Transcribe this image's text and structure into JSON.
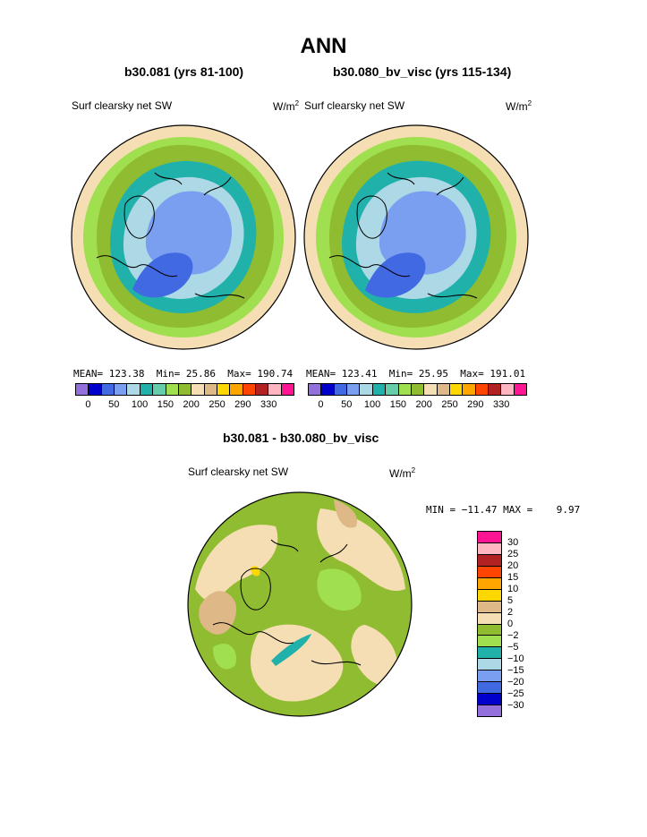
{
  "title": "ANN",
  "panels": [
    {
      "case_title": "b30.081 (yrs 81-100)",
      "field": "Surf clearsky net SW",
      "units": "W/m",
      "units_sup": "2",
      "stats": {
        "mean_label": "MEAN=",
        "mean": "123.38",
        "min_label": "Min=",
        "min": "25.86",
        "max_label": "Max=",
        "max": "190.74"
      }
    },
    {
      "case_title": "b30.080_bv_visc (yrs 115-134)",
      "field": "Surf clearsky net SW",
      "units": "W/m",
      "units_sup": "2",
      "stats": {
        "mean_label": "MEAN=",
        "mean": "123.41",
        "min_label": "Min=",
        "min": "25.95",
        "max_label": "Max=",
        "max": "191.01"
      }
    }
  ],
  "abs_colorbar": {
    "colors": [
      "#9370db",
      "#0000cd",
      "#4169e1",
      "#7b9ff0",
      "#add8e6",
      "#20b2aa",
      "#66cdaa",
      "#a0e050",
      "#8fbc30",
      "#f5deb3",
      "#deb887",
      "#ffd700",
      "#ffa500",
      "#ff4500",
      "#b22222",
      "#ffb6c1",
      "#ff1493"
    ],
    "labels": [
      "0",
      "50",
      "100",
      "150",
      "200",
      "250",
      "290",
      "330"
    ]
  },
  "diff": {
    "title": "b30.081 - b30.080_bv_visc",
    "field": "Surf clearsky net SW",
    "units": "W/m",
    "units_sup": "2",
    "minmax": "MIN = −11.47 MAX =    9.97",
    "colors": [
      "#ff1493",
      "#ffb6c1",
      "#b22222",
      "#ff4500",
      "#ffa500",
      "#ffd700",
      "#deb887",
      "#f5deb3",
      "#8fbc30",
      "#a0e050",
      "#20b2aa",
      "#add8e6",
      "#7b9ff0",
      "#4169e1",
      "#0000cd",
      "#9370db"
    ],
    "labels": [
      "30",
      "25",
      "20",
      "15",
      "10",
      "5",
      "2",
      "0",
      "−2",
      "−5",
      "−10",
      "−15",
      "−20",
      "−25",
      "−30"
    ]
  },
  "map_colors": {
    "ocean_cold": "#7b9ff0",
    "ocean_deep": "#4169e1",
    "ice_edge": "#add8e6",
    "teal": "#20b2aa",
    "green": "#a0e050",
    "olive": "#8fbc30",
    "wheat": "#f5deb3",
    "tan": "#deb887"
  }
}
